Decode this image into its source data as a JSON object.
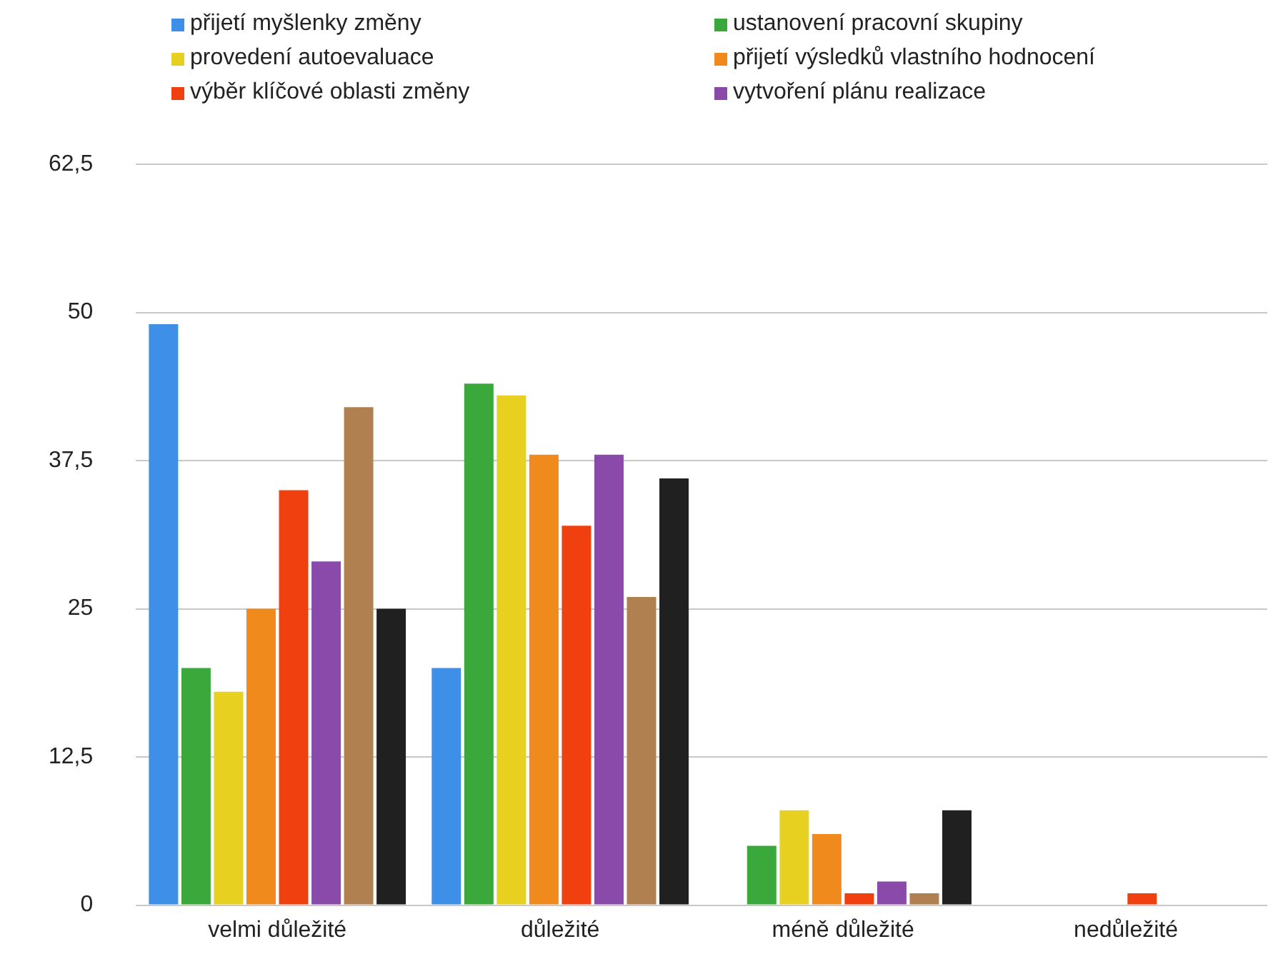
{
  "chart_data": {
    "type": "bar",
    "categories": [
      "velmi důležité",
      "důležité",
      "méně důležité",
      "nedůležité"
    ],
    "series": [
      {
        "name": "přijetí myšlenky změny",
        "color": "#3d8fe8",
        "values": [
          49,
          20,
          0,
          0
        ]
      },
      {
        "name": "ustanovení pracovní skupiny",
        "color": "#3aa83a",
        "values": [
          20,
          44,
          5,
          0
        ]
      },
      {
        "name": "provedení autoevaluace",
        "color": "#e8d020",
        "values": [
          18,
          43,
          8,
          0
        ]
      },
      {
        "name": "přijetí výsledků vlastního hodnocení",
        "color": "#f08a1c",
        "values": [
          25,
          38,
          6,
          0
        ]
      },
      {
        "name": "výběr klíčové oblasti změny",
        "color": "#f04010",
        "values": [
          35,
          32,
          1,
          1
        ]
      },
      {
        "name": "vytvoření plánu realizace",
        "color": "#8a4aaa",
        "values": [
          29,
          38,
          2,
          0
        ]
      },
      {
        "color": "#b08050",
        "values": [
          42,
          26,
          1,
          0
        ]
      },
      {
        "color": "#202020",
        "values": [
          25,
          36,
          8,
          0
        ]
      }
    ],
    "ylim": [
      0,
      62.5
    ],
    "yticks": [
      0,
      {
        "value": 12.5,
        "label": "12,5"
      },
      25,
      {
        "value": 37.5,
        "label": "37,5"
      },
      50,
      {
        "value": 62.5,
        "label": "62,5"
      }
    ],
    "grid": "y",
    "legend": "top"
  }
}
